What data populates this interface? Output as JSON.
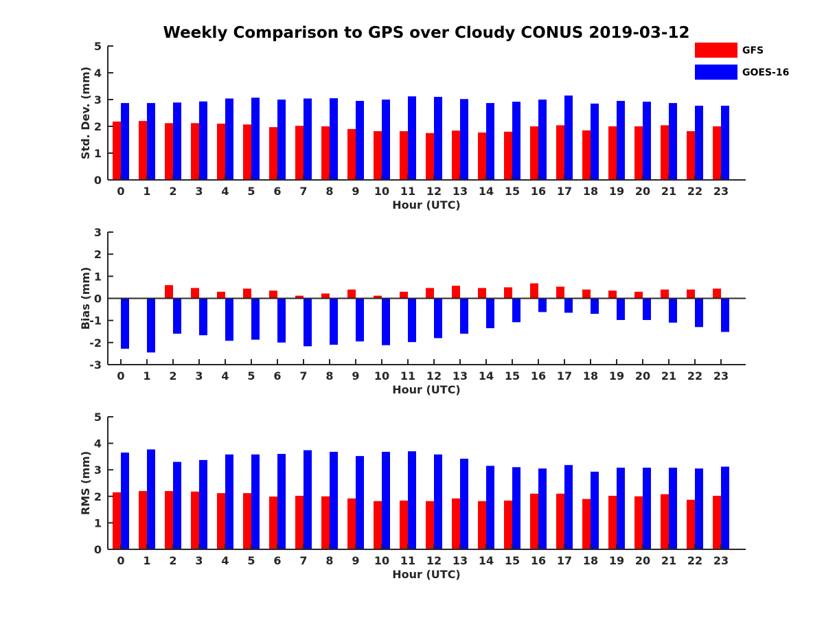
{
  "title": "Weekly Comparison to GPS over Cloudy CONUS 2019-03-12",
  "legend": {
    "placement": "top-right",
    "entries": [
      {
        "name": "GFS",
        "color": "#ff0000"
      },
      {
        "name": "GOES-16",
        "color": "#0000ff"
      }
    ]
  },
  "chart_data": [
    {
      "type": "bar",
      "xlabel": "Hour (UTC)",
      "ylabel": "Std. Dev. (mm)",
      "ylim": [
        0,
        5
      ],
      "yticks": [
        "0",
        "1",
        "2",
        "3",
        "4",
        "5"
      ],
      "categories": [
        "0",
        "1",
        "2",
        "3",
        "4",
        "5",
        "6",
        "7",
        "8",
        "9",
        "10",
        "11",
        "12",
        "13",
        "14",
        "15",
        "16",
        "17",
        "18",
        "19",
        "20",
        "21",
        "22",
        "23"
      ],
      "series": [
        {
          "name": "GFS",
          "color": "#ff0000",
          "values": [
            2.18,
            2.2,
            2.12,
            2.12,
            2.1,
            2.07,
            1.97,
            2.02,
            2.0,
            1.9,
            1.82,
            1.82,
            1.75,
            1.84,
            1.77,
            1.8,
            2.0,
            2.04,
            1.85,
            2.0,
            2.0,
            2.04,
            1.82,
            2.0
          ]
        },
        {
          "name": "GOES-16",
          "color": "#0000ff",
          "values": [
            2.87,
            2.87,
            2.89,
            2.93,
            3.04,
            3.07,
            3.0,
            3.04,
            3.05,
            2.95,
            3.0,
            3.12,
            3.1,
            3.02,
            2.87,
            2.92,
            3.0,
            3.15,
            2.85,
            2.95,
            2.92,
            2.87,
            2.77,
            2.77
          ]
        }
      ]
    },
    {
      "type": "bar",
      "xlabel": "Hour (UTC)",
      "ylabel": "Bias (mm)",
      "ylim": [
        -3,
        3
      ],
      "yticks": [
        "-3",
        "-2",
        "-1",
        "0",
        "1",
        "2",
        "3"
      ],
      "zero_line": true,
      "categories": [
        "0",
        "1",
        "2",
        "3",
        "4",
        "5",
        "6",
        "7",
        "8",
        "9",
        "10",
        "11",
        "12",
        "13",
        "14",
        "15",
        "16",
        "17",
        "18",
        "19",
        "20",
        "21",
        "22",
        "23"
      ],
      "series": [
        {
          "name": "GFS",
          "color": "#ff0000",
          "values": [
            0.0,
            0.02,
            0.6,
            0.47,
            0.3,
            0.44,
            0.35,
            0.12,
            0.22,
            0.4,
            0.12,
            0.3,
            0.47,
            0.57,
            0.47,
            0.5,
            0.68,
            0.53,
            0.4,
            0.35,
            0.3,
            0.4,
            0.4,
            0.44
          ]
        },
        {
          "name": "GOES-16",
          "color": "#0000ff",
          "values": [
            -2.28,
            -2.45,
            -1.6,
            -1.67,
            -1.92,
            -1.87,
            -2.0,
            -2.17,
            -2.1,
            -1.95,
            -2.12,
            -1.98,
            -1.8,
            -1.6,
            -1.35,
            -1.08,
            -0.62,
            -0.65,
            -0.7,
            -0.98,
            -0.98,
            -1.1,
            -1.3,
            -1.52
          ]
        }
      ]
    },
    {
      "type": "bar",
      "xlabel": "Hour (UTC)",
      "ylabel": "RMS (mm)",
      "ylim": [
        0,
        5
      ],
      "yticks": [
        "0",
        "1",
        "2",
        "3",
        "4",
        "5"
      ],
      "categories": [
        "0",
        "1",
        "2",
        "3",
        "4",
        "5",
        "6",
        "7",
        "8",
        "9",
        "10",
        "11",
        "12",
        "13",
        "14",
        "15",
        "16",
        "17",
        "18",
        "19",
        "20",
        "21",
        "22",
        "23"
      ],
      "series": [
        {
          "name": "GFS",
          "color": "#ff0000",
          "values": [
            2.15,
            2.2,
            2.2,
            2.18,
            2.12,
            2.12,
            1.99,
            2.02,
            2.0,
            1.92,
            1.82,
            1.84,
            1.82,
            1.92,
            1.82,
            1.84,
            2.1,
            2.1,
            1.9,
            2.02,
            2.0,
            2.08,
            1.87,
            2.02
          ]
        },
        {
          "name": "GOES-16",
          "color": "#0000ff",
          "values": [
            3.65,
            3.77,
            3.3,
            3.37,
            3.58,
            3.58,
            3.6,
            3.74,
            3.68,
            3.52,
            3.68,
            3.7,
            3.58,
            3.42,
            3.15,
            3.1,
            3.05,
            3.18,
            2.93,
            3.08,
            3.08,
            3.08,
            3.05,
            3.12
          ]
        }
      ]
    }
  ]
}
